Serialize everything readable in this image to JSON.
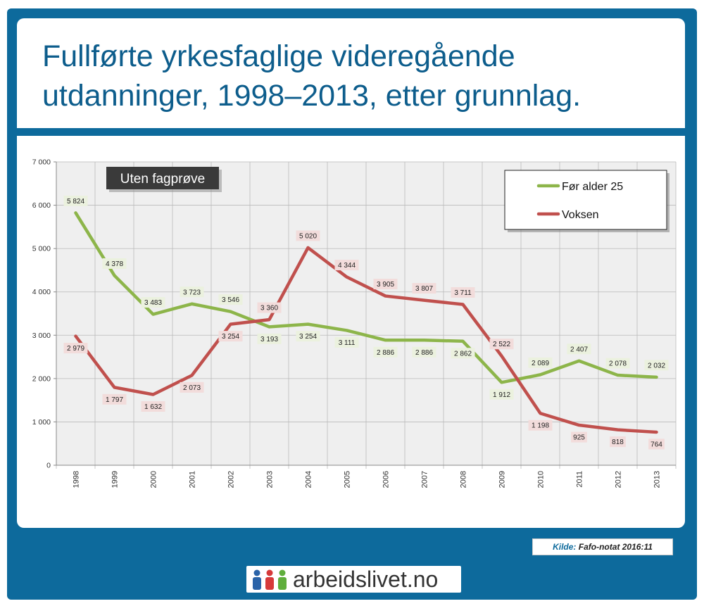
{
  "title": "Fullførte yrkesfaglige videregående utdanninger, 1998–2013, etter grunnlag.",
  "source": {
    "label": "Kilde:",
    "text": "Fafo-notat 2016:11"
  },
  "logo": {
    "text": "arbeidslivet.no",
    "icon": "people-icon"
  },
  "colors": {
    "frame": "#0d6a9c",
    "title": "#0d5d8c",
    "series_green": "#8db54a",
    "series_red": "#c0504d",
    "label_green_bg": "#ebf1de",
    "label_red_bg": "#f2dcdb",
    "plot_bg": "#efefef"
  },
  "chart_data": {
    "type": "line",
    "annotation": "Uten fagprøve",
    "x": [
      "1998",
      "1999",
      "2000",
      "2001",
      "2002",
      "2003",
      "2004",
      "2005",
      "2006",
      "2007",
      "2008",
      "2009",
      "2010",
      "2011",
      "2012",
      "2013"
    ],
    "ylim": [
      0,
      7000
    ],
    "yticks": [
      0,
      1000,
      2000,
      3000,
      4000,
      5000,
      6000,
      7000
    ],
    "ytick_labels": [
      "0",
      "1 000",
      "2 000",
      "3 000",
      "4 000",
      "5 000",
      "6 000",
      "7 000"
    ],
    "grid": true,
    "legend_position": "top-right",
    "series": [
      {
        "name": "Før alder 25",
        "color": "#8db54a",
        "values": [
          5824,
          4378,
          3483,
          3723,
          3546,
          3193,
          3254,
          3111,
          2886,
          2886,
          2862,
          1912,
          2089,
          2407,
          2078,
          2032
        ],
        "labels": [
          "5 824",
          "4 378",
          "3 483",
          "3 723",
          "3 546",
          "3 193",
          "3 254",
          "3 111",
          "2 886",
          "2 886",
          "2 862",
          "1 912",
          "2 089",
          "2 407",
          "2 078",
          "2 032"
        ]
      },
      {
        "name": "Voksen",
        "color": "#c0504d",
        "values": [
          2979,
          1797,
          1632,
          2073,
          3254,
          3360,
          5020,
          4344,
          3905,
          3807,
          3711,
          2522,
          1198,
          925,
          818,
          764
        ],
        "labels": [
          "2 979",
          "1 797",
          "1 632",
          "2 073",
          "3 254",
          "3 360",
          "5 020",
          "4 344",
          "3 905",
          "3 807",
          "3 711",
          "2 522",
          "1 198",
          "925",
          "818",
          "764"
        ]
      }
    ]
  }
}
